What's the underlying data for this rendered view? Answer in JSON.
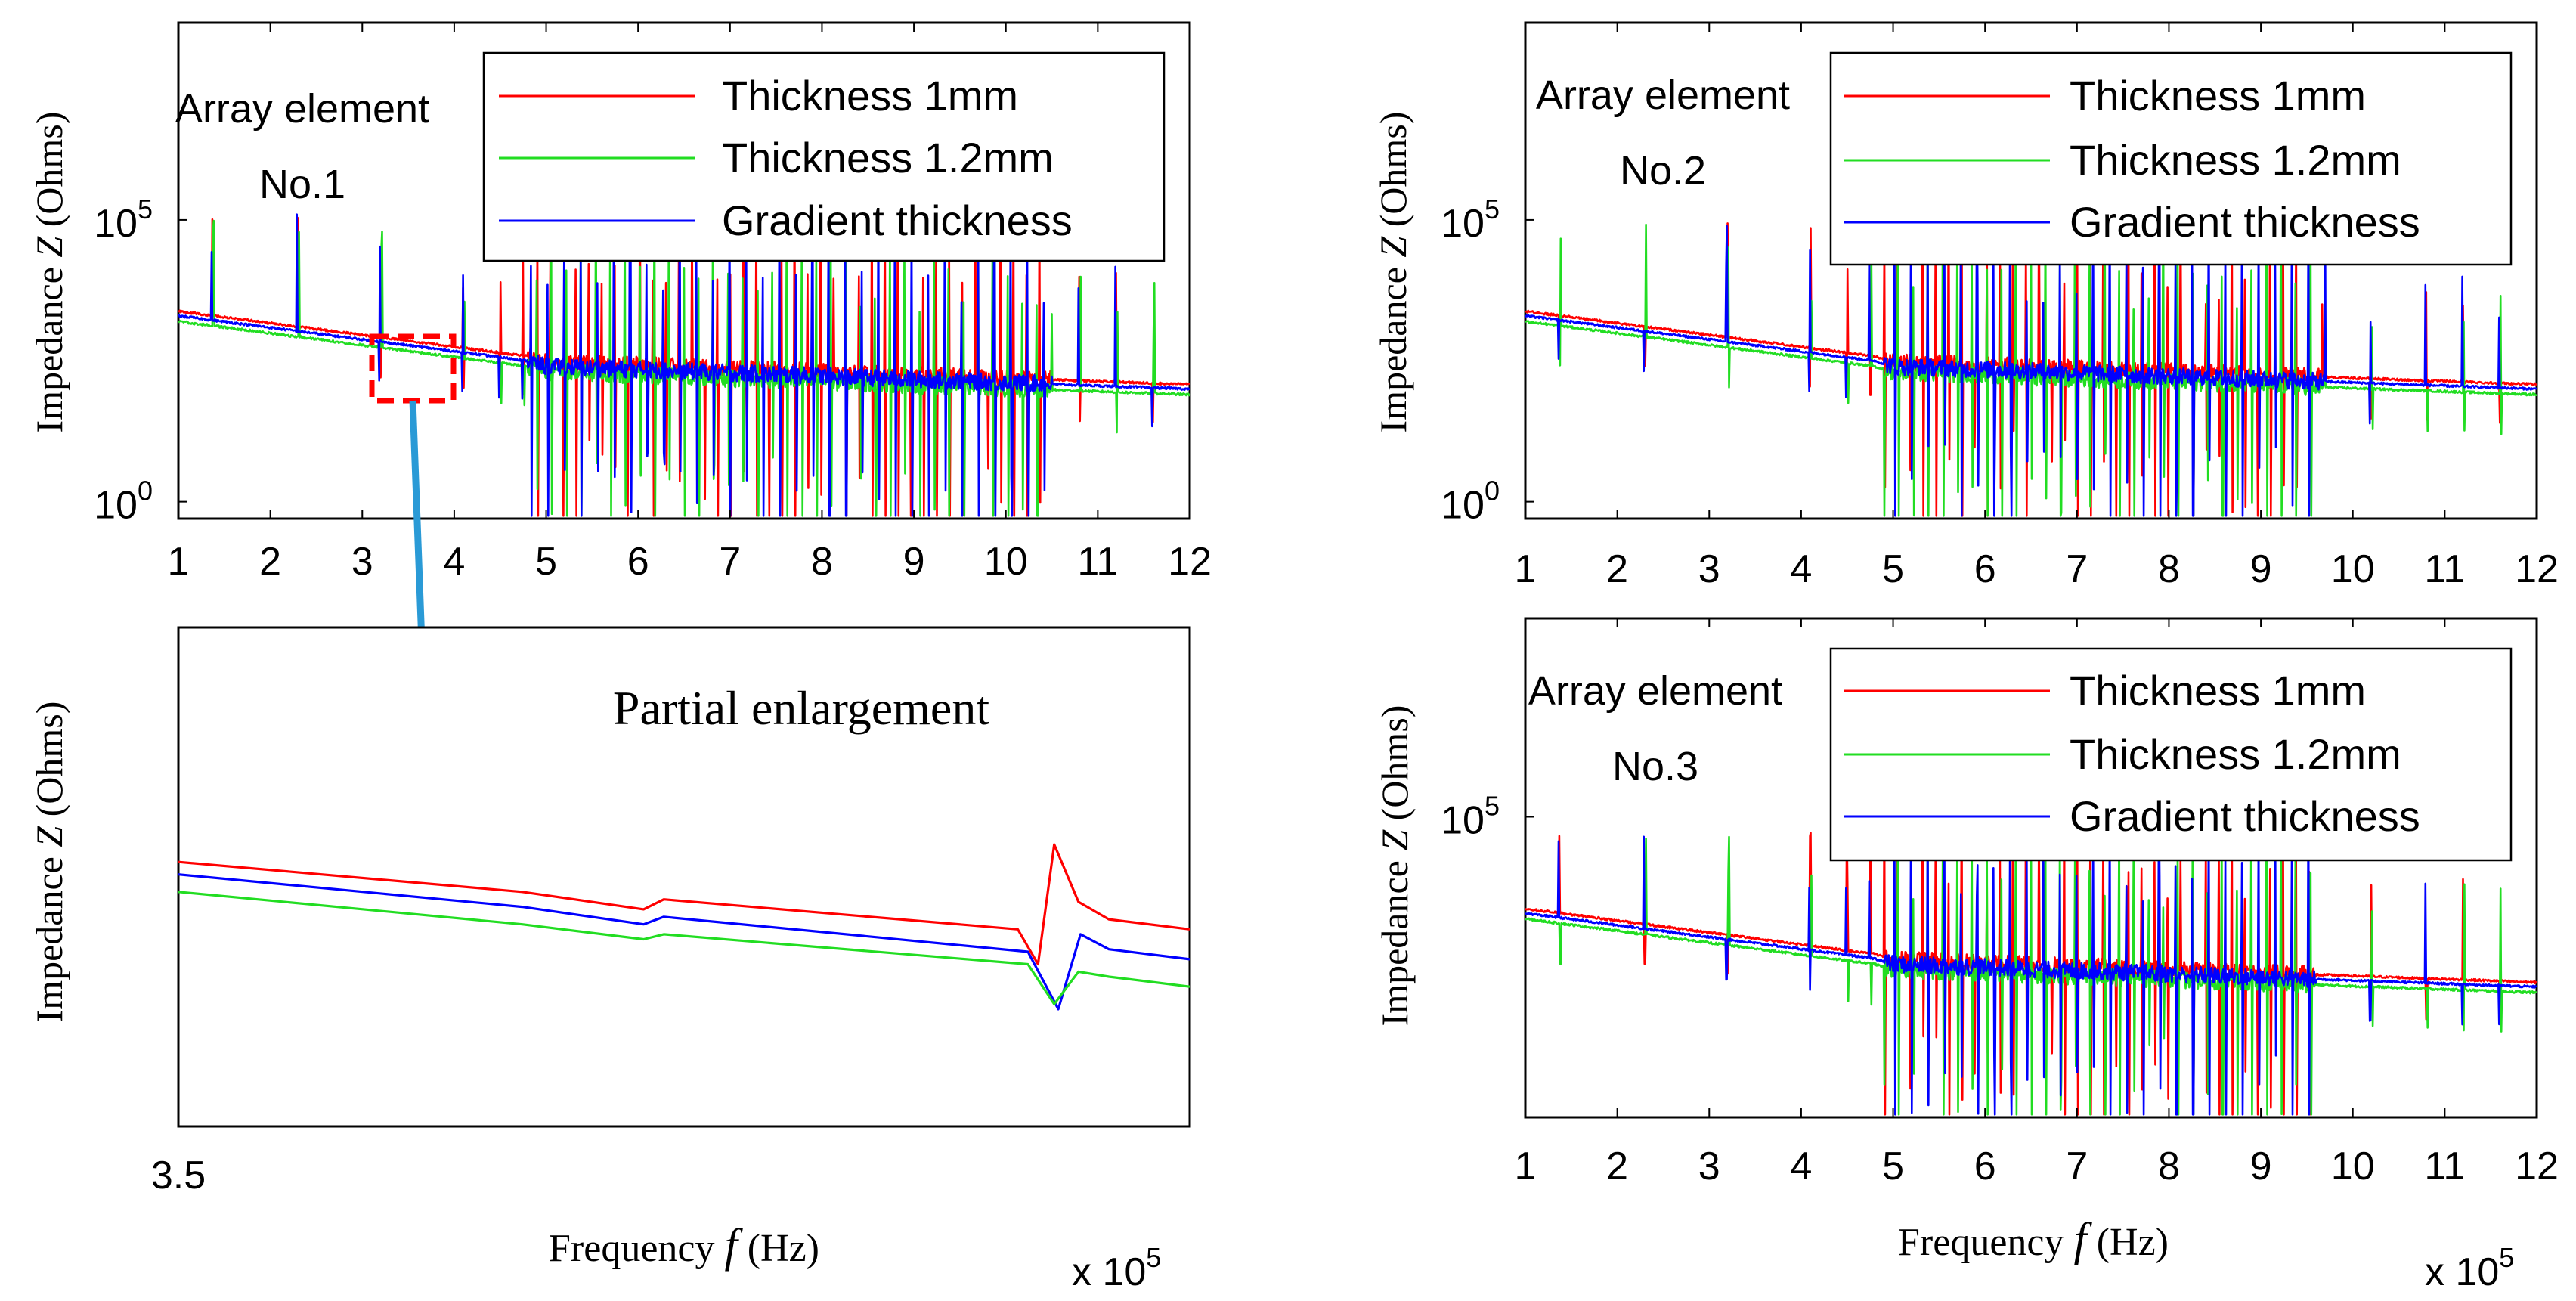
{
  "chart_data": [
    {
      "id": "no1",
      "type": "line",
      "yscale": "log",
      "annotation": [
        "Array element",
        "No.1"
      ],
      "ylabel_prefix": "Impedance ",
      "ylabel_var": "Z",
      "ylabel_suffix": " (Ohms)",
      "x_ticks": [
        "1",
        "2",
        "3",
        "4",
        "5",
        "6",
        "7",
        "8",
        "9",
        "10",
        "11",
        "12"
      ],
      "y_ticks": [
        {
          "base": "10",
          "exp": "5",
          "value": 5
        },
        {
          "base": "10",
          "exp": "0",
          "value": 0
        }
      ],
      "xlim": [
        1,
        12
      ],
      "ylim_log10": [
        -0.3,
        8.5
      ],
      "legend": [
        "Thickness 1mm",
        "Thickness 1.2mm",
        "Gradient thickness"
      ],
      "series": [
        {
          "name": "Thickness 1mm",
          "color": "#ff0000"
        },
        {
          "name": "Thickness 1.2mm",
          "color": "#22dd22"
        },
        {
          "name": "Gradient thickness",
          "color": "#0000ff"
        }
      ],
      "baseline_log10": [
        [
          1,
          3.3
        ],
        [
          4.8,
          2.5
        ],
        [
          5,
          2.4
        ],
        [
          12,
          2.0
        ]
      ],
      "dense_resonance_range": [
        4.8,
        10.5
      ],
      "zoom_box_x": [
        3.3,
        4.2
      ]
    },
    {
      "id": "no2",
      "type": "line",
      "yscale": "log",
      "annotation": [
        "Array element",
        "No.2"
      ],
      "ylabel_prefix": "Impedance ",
      "ylabel_var": "Z",
      "ylabel_suffix": " (Ohms)",
      "x_ticks": [
        "1",
        "2",
        "3",
        "4",
        "5",
        "6",
        "7",
        "8",
        "9",
        "10",
        "11",
        "12"
      ],
      "y_ticks": [
        {
          "base": "10",
          "exp": "5",
          "value": 5
        },
        {
          "base": "10",
          "exp": "0",
          "value": 0
        }
      ],
      "xlim": [
        1,
        12
      ],
      "ylim_log10": [
        -0.3,
        8.5
      ],
      "legend": [
        "Thickness 1mm",
        "Thickness 1.2mm",
        "Gradient thickness"
      ],
      "series": [
        {
          "name": "Thickness 1mm",
          "color": "#ff0000"
        },
        {
          "name": "Thickness 1.2mm",
          "color": "#22dd22"
        },
        {
          "name": "Gradient thickness",
          "color": "#0000ff"
        }
      ],
      "baseline_log10": [
        [
          1,
          3.3
        ],
        [
          4.8,
          2.5
        ],
        [
          5,
          2.4
        ],
        [
          12,
          2.0
        ]
      ],
      "dense_resonance_range": [
        4.9,
        9.7
      ]
    },
    {
      "id": "no3",
      "type": "line",
      "yscale": "log",
      "annotation": [
        "Array element",
        "No.3"
      ],
      "ylabel_prefix": "Impedance ",
      "ylabel_var": "Z",
      "ylabel_suffix": " (Ohms)",
      "x_ticks": [
        "1",
        "2",
        "3",
        "4",
        "5",
        "6",
        "7",
        "8",
        "9",
        "10",
        "11",
        "12"
      ],
      "y_ticks": [
        {
          "base": "10",
          "exp": "5",
          "value": 5
        }
      ],
      "xlim": [
        1,
        12
      ],
      "ylim_log10": [
        -0.3,
        8.5
      ],
      "xlabel_prefix": "Frequency ",
      "xlabel_var": "f",
      "xlabel_suffix": " (Hz)",
      "x_multiplier": {
        "base": "x 10",
        "exp": "5"
      },
      "legend": [
        "Thickness 1mm",
        "Thickness 1.2mm",
        "Gradient thickness"
      ],
      "series": [
        {
          "name": "Thickness 1mm",
          "color": "#ff0000"
        },
        {
          "name": "Thickness 1.2mm",
          "color": "#22dd22"
        },
        {
          "name": "Gradient thickness",
          "color": "#0000ff"
        }
      ],
      "baseline_log10": [
        [
          1,
          3.3
        ],
        [
          4.8,
          2.5
        ],
        [
          5,
          2.4
        ],
        [
          12,
          2.0
        ]
      ],
      "dense_resonance_range": [
        4.9,
        9.6
      ]
    },
    {
      "id": "zoom",
      "type": "line",
      "title": "Partial enlargement",
      "ylabel_prefix": "Impedance ",
      "ylabel_var": "Z",
      "ylabel_suffix": " (Ohms)",
      "xlabel_prefix": "Frequency ",
      "xlabel_var": "f",
      "xlabel_suffix": " (Hz)",
      "x_multiplier": {
        "base": "x 10",
        "exp": "5"
      },
      "x_ticks": [
        "3.5"
      ],
      "xlim": [
        3.5,
        4.0
      ],
      "ylim": [
        0,
        1
      ],
      "series": [
        {
          "name": "Thickness 1mm",
          "color": "#ff0000",
          "points": [
            [
              3.5,
              0.53
            ],
            [
              3.67,
              0.47
            ],
            [
              3.73,
              0.435
            ],
            [
              3.74,
              0.455
            ],
            [
              3.915,
              0.395
            ],
            [
              3.925,
              0.325
            ],
            [
              3.933,
              0.565
            ],
            [
              3.945,
              0.45
            ],
            [
              3.96,
              0.415
            ],
            [
              4.0,
              0.395
            ]
          ]
        },
        {
          "name": "Gradient thickness",
          "color": "#0000ff",
          "points": [
            [
              3.5,
              0.505
            ],
            [
              3.67,
              0.44
            ],
            [
              3.73,
              0.405
            ],
            [
              3.74,
              0.42
            ],
            [
              3.92,
              0.35
            ],
            [
              3.935,
              0.235
            ],
            [
              3.946,
              0.385
            ],
            [
              3.96,
              0.355
            ],
            [
              4.0,
              0.335
            ]
          ]
        },
        {
          "name": "Thickness 1.2mm",
          "color": "#22dd22",
          "points": [
            [
              3.5,
              0.47
            ],
            [
              3.67,
              0.405
            ],
            [
              3.73,
              0.375
            ],
            [
              3.74,
              0.385
            ],
            [
              3.92,
              0.325
            ],
            [
              3.933,
              0.245
            ],
            [
              3.945,
              0.31
            ],
            [
              3.96,
              0.3
            ],
            [
              4.0,
              0.28
            ]
          ]
        }
      ]
    }
  ],
  "colors": {
    "zoom_box": "#ff0000",
    "arrow": "#2a9ad6"
  }
}
